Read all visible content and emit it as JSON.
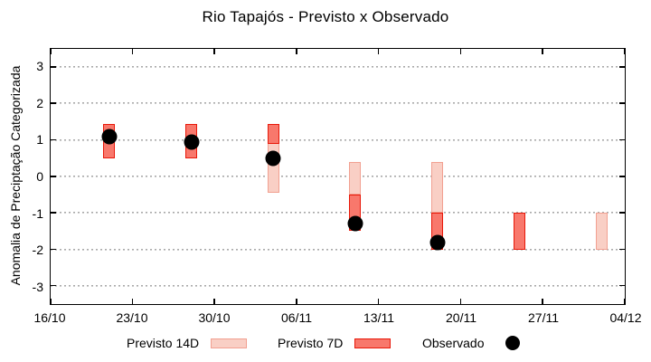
{
  "chart_data": {
    "type": "bar",
    "title": "Rio Tapajós - Previsto x Observado",
    "ylabel": "Anomalia de Preciptação Categorizada",
    "xlabel": "",
    "ylim": [
      -3.5,
      3.5
    ],
    "yticks": [
      3,
      2,
      1,
      0,
      -1,
      -2,
      -3
    ],
    "grid": true,
    "x_span_days": 49,
    "xticks": [
      {
        "day": 0,
        "label": "16/10"
      },
      {
        "day": 7,
        "label": "23/10"
      },
      {
        "day": 14,
        "label": "30/10"
      },
      {
        "day": 21,
        "label": "06/11"
      },
      {
        "day": 28,
        "label": "13/11"
      },
      {
        "day": 35,
        "label": "20/11"
      },
      {
        "day": 42,
        "label": "27/11"
      },
      {
        "day": 49,
        "label": "04/12"
      }
    ],
    "series": [
      {
        "name": "Previsto 14D",
        "type": "range-bar",
        "fill": "#f9cfc5",
        "border": "#f2a091",
        "bars": [
          {
            "day": 19,
            "low": -0.45,
            "high": 1.45
          },
          {
            "day": 26,
            "low": -0.5,
            "high": 0.4
          },
          {
            "day": 33,
            "low": -1.0,
            "high": 0.4
          },
          {
            "day": 47,
            "low": -2.0,
            "high": -1.0
          }
        ]
      },
      {
        "name": "Previsto 7D",
        "type": "range-bar",
        "fill": "#f8786c",
        "border": "#e81809",
        "bars": [
          {
            "day": 5,
            "low": 0.5,
            "high": 1.45
          },
          {
            "day": 12,
            "low": 0.5,
            "high": 1.45
          },
          {
            "day": 19,
            "low": 0.9,
            "high": 1.45
          },
          {
            "day": 26,
            "low": -1.5,
            "high": -0.5
          },
          {
            "day": 33,
            "low": -2.0,
            "high": -1.0
          },
          {
            "day": 40,
            "low": -2.0,
            "high": -1.0
          }
        ]
      },
      {
        "name": "Observado",
        "type": "scatter",
        "color": "#000000",
        "points": [
          {
            "day": 5,
            "value": 1.1
          },
          {
            "day": 12,
            "value": 0.95
          },
          {
            "day": 19,
            "value": 0.5
          },
          {
            "day": 26,
            "value": -1.3
          },
          {
            "day": 33,
            "value": -1.8
          }
        ]
      }
    ],
    "legend": {
      "position": "bottom",
      "items": [
        {
          "label": "Previsto 14D"
        },
        {
          "label": "Previsto 7D"
        },
        {
          "label": "Observado"
        }
      ]
    }
  }
}
